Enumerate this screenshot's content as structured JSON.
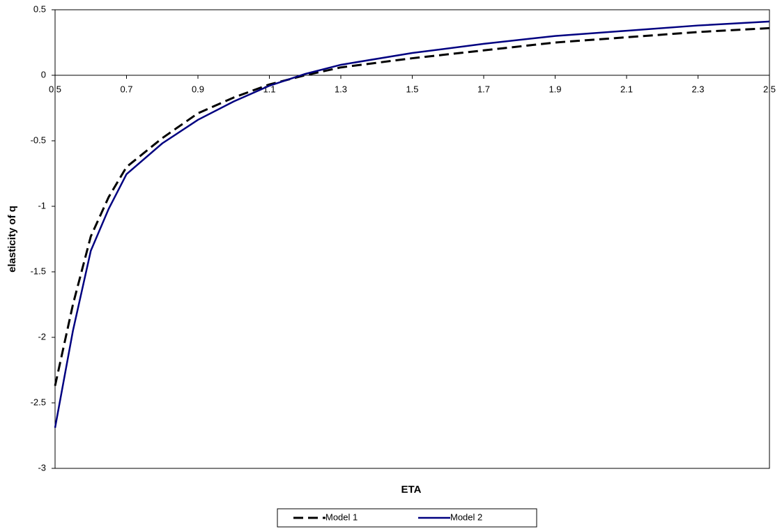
{
  "chart_data": {
    "type": "line",
    "x_label": "ETA",
    "y_label": "elasticity of q",
    "x": [
      0.5,
      0.55,
      0.6,
      0.65,
      0.7,
      0.8,
      0.9,
      1.0,
      1.1,
      1.2,
      1.3,
      1.5,
      1.7,
      1.9,
      2.1,
      2.3,
      2.5
    ],
    "series": [
      {
        "name": "Model 1",
        "color": "#000000",
        "dash": true,
        "values": [
          -2.37,
          -1.75,
          -1.23,
          -0.93,
          -0.7,
          -0.48,
          -0.29,
          -0.17,
          -0.07,
          0.0,
          0.06,
          0.13,
          0.19,
          0.25,
          0.29,
          0.33,
          0.36
        ]
      },
      {
        "name": "Model 2",
        "color": "#000080",
        "dash": false,
        "values": [
          -2.69,
          -1.95,
          -1.34,
          -1.02,
          -0.755,
          -0.52,
          -0.34,
          -0.2,
          -0.08,
          0.01,
          0.08,
          0.17,
          0.24,
          0.3,
          0.34,
          0.38,
          0.41
        ]
      }
    ],
    "xlim": [
      0.5,
      2.5
    ],
    "ylim": [
      -3,
      0.5
    ],
    "xticks": [
      0.5,
      0.7,
      0.9,
      1.1,
      1.3,
      1.5,
      1.7,
      1.9,
      2.1,
      2.3,
      2.5
    ],
    "yticks": [
      0.5,
      0,
      -0.5,
      -1,
      -1.5,
      -2,
      -2.5,
      -3
    ],
    "legend": "bottom"
  }
}
